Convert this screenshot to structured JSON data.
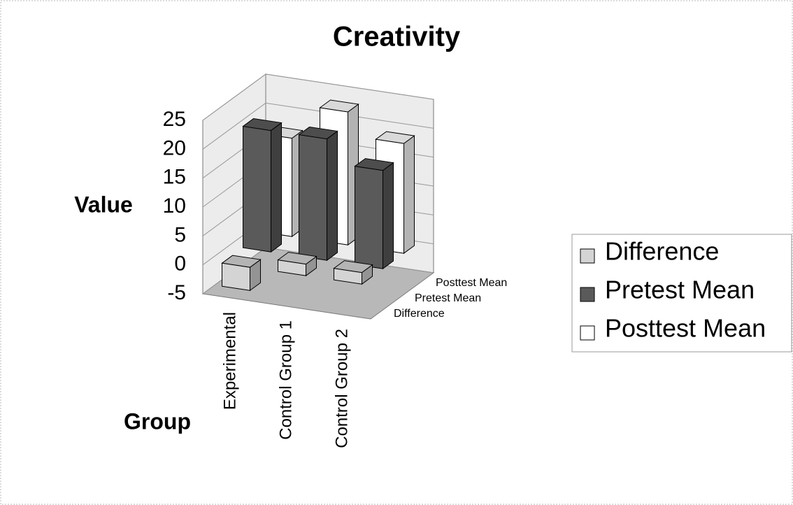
{
  "chart_data": {
    "type": "bar3d",
    "title": "Creativity",
    "x_label": "Group",
    "y_label": "Value",
    "categories": [
      "Experimental",
      "Control Group 1",
      "Control Group 2"
    ],
    "series": [
      {
        "name": "Difference",
        "color": "#d4d4d4",
        "values": [
          -4,
          2,
          2
        ]
      },
      {
        "name": "Pretest Mean",
        "color": "#5a5a5a",
        "values": [
          21,
          21,
          17
        ]
      },
      {
        "name": "Posttest Mean",
        "color": "#ffffff",
        "values": [
          17,
          23,
          19
        ]
      }
    ],
    "ylim": [
      -5,
      25
    ],
    "yticks": [
      -5,
      0,
      5,
      10,
      15,
      20,
      25
    ],
    "grid": true,
    "legend": "right"
  }
}
